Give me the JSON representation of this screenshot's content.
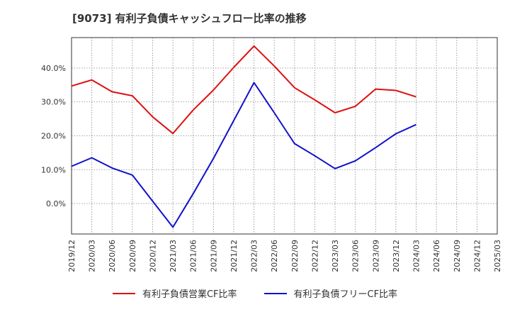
{
  "chart_data": {
    "type": "line",
    "title": "[9073]  有利子負債キャッシュフロー比率の推移",
    "xlabel": "",
    "ylabel": "",
    "x_ticks": [
      "2019/12",
      "2020/03",
      "2020/06",
      "2020/09",
      "2020/12",
      "2021/03",
      "2021/06",
      "2021/09",
      "2021/12",
      "2022/03",
      "2022/06",
      "2022/09",
      "2022/12",
      "2023/03",
      "2023/06",
      "2023/09",
      "2023/12",
      "2024/03",
      "2024/06",
      "2024/09",
      "2024/12",
      "2025/03"
    ],
    "y_ticks": [
      0,
      10,
      20,
      30,
      40
    ],
    "y_tick_labels": [
      "0.0%",
      "10.0%",
      "20.0%",
      "30.0%",
      "40.0%"
    ],
    "ylim": [
      -9,
      49
    ],
    "grid": true,
    "legend_position": "bottom",
    "series": [
      {
        "name": "有利子負債営業CF比率",
        "color": "#dd1111",
        "x": [
          "2019/12",
          "2020/03",
          "2020/06",
          "2020/09",
          "2020/12",
          "2021/03",
          "2021/06",
          "2021/09",
          "2021/12",
          "2022/03",
          "2022/06",
          "2022/09",
          "2022/12",
          "2023/03",
          "2023/06",
          "2023/09",
          "2023/12",
          "2024/03"
        ],
        "values": [
          34.7,
          36.5,
          33.0,
          31.8,
          25.6,
          20.7,
          27.6,
          33.5,
          40.2,
          46.5,
          40.6,
          34.2,
          30.6,
          26.8,
          28.7,
          33.8,
          33.4,
          31.5
        ]
      },
      {
        "name": "有利子負債フリーCF比率",
        "color": "#1111cc",
        "x": [
          "2019/12",
          "2020/03",
          "2020/06",
          "2020/09",
          "2020/12",
          "2021/03",
          "2021/06",
          "2021/09",
          "2021/12",
          "2022/03",
          "2022/06",
          "2022/09",
          "2022/12",
          "2023/03",
          "2023/06",
          "2023/09",
          "2023/12",
          "2024/03"
        ],
        "values": [
          11.0,
          13.5,
          10.5,
          8.4,
          0.7,
          -7.0,
          2.9,
          13.3,
          24.5,
          35.7,
          26.8,
          17.7,
          14.1,
          10.3,
          12.6,
          16.5,
          20.6,
          23.3
        ]
      }
    ]
  }
}
